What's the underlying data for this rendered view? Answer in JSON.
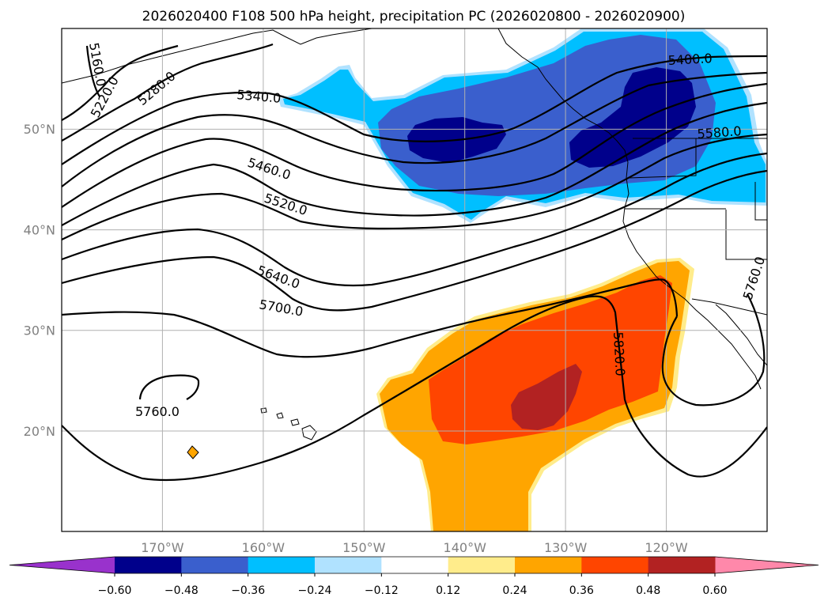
{
  "chart_data": {
    "type": "contour-map",
    "title": "2026020400 F108 500 hPa height, precipitation PC (2026020800 - 2026020900)",
    "region": "North-East Pacific",
    "lon_range": [
      -180,
      -110
    ],
    "lat_range": [
      10,
      60
    ],
    "grid": true,
    "x_ticks": [
      {
        "lon": -170,
        "label": "170°W"
      },
      {
        "lon": -160,
        "label": "160°W"
      },
      {
        "lon": -150,
        "label": "150°W"
      },
      {
        "lon": -140,
        "label": "140°W"
      },
      {
        "lon": -130,
        "label": "130°W"
      },
      {
        "lon": -120,
        "label": "120°W"
      }
    ],
    "y_ticks": [
      {
        "lat": 20,
        "label": "20°N"
      },
      {
        "lat": 30,
        "label": "30°N"
      },
      {
        "lat": 40,
        "label": "40°N"
      },
      {
        "lat": 50,
        "label": "50°N"
      }
    ],
    "height_contours": {
      "variable": "500 hPa geopotential height",
      "interval": 60,
      "labels": [
        "5160.0",
        "5220.0",
        "5280.0",
        "5340.0",
        "5400.0",
        "5460.0",
        "5520.0",
        "5580.0",
        "5640.0",
        "5700.0",
        "5760.0",
        "5760.0",
        "5820.0"
      ]
    },
    "precipitation_pc": {
      "colorbar": {
        "levels": [
          -0.6,
          -0.48,
          -0.36,
          -0.24,
          -0.12,
          0.12,
          0.24,
          0.36,
          0.48,
          0.6
        ],
        "tick_labels": [
          "−0.60",
          "−0.48",
          "−0.36",
          "−0.24",
          "−0.12",
          "0.12",
          "0.24",
          "0.36",
          "0.48",
          "0.60"
        ],
        "colors": [
          "#9932cc",
          "#00008b",
          "#3a5fcd",
          "#00bfff",
          "#b0e2ff",
          "#ffffff",
          "#ffec8b",
          "#ffa500",
          "#ff4500",
          "#b22222",
          "#ff88aa"
        ],
        "extend": "both"
      },
      "negative_region": "Gulf of Alaska to Pacific Northwest (approx. 42-58°N, 150-112°W), core below −0.48",
      "positive_region": "Subtropical east Pacific (approx. 10-37°N, 145-118°W), core above 0.48 near 22°N 132°W"
    }
  }
}
